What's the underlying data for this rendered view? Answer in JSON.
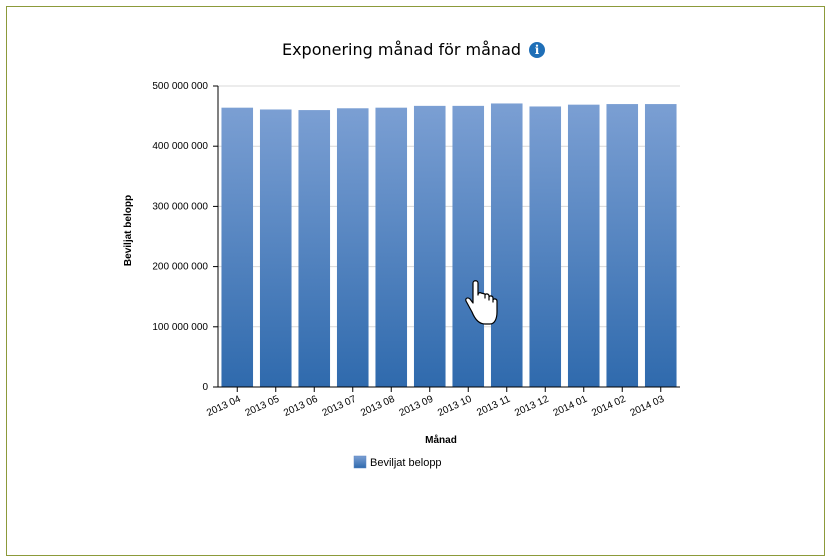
{
  "chart_data": {
    "type": "bar",
    "title": "Exponering månad för månad",
    "xlabel": "Månad",
    "ylabel": "Beviljat belopp",
    "categories": [
      "2013 04",
      "2013 05",
      "2013 06",
      "2013 07",
      "2013 08",
      "2013 09",
      "2013 10",
      "2013 11",
      "2013 12",
      "2014 01",
      "2014 02",
      "2014 03"
    ],
    "series": [
      {
        "name": "Beviljat belopp",
        "values": [
          464000000,
          461000000,
          460000000,
          463000000,
          464000000,
          467000000,
          467000000,
          471000000,
          466000000,
          469000000,
          470000000,
          470000000
        ]
      }
    ],
    "ylim": [
      0,
      500000000
    ],
    "yticks": [
      0,
      100000000,
      200000000,
      300000000,
      400000000,
      500000000
    ],
    "ytick_labels": [
      "0",
      "100 000 000",
      "200 000 000",
      "300 000 000",
      "400 000 000",
      "500 000 000"
    ],
    "grid": true,
    "legend_position": "bottom",
    "colors": {
      "bar_top": "#7b9fd3",
      "bar_bottom": "#2f6aad",
      "grid": "#d9d9d9",
      "axis": "#000000",
      "info_icon": "#1f6fb7",
      "panel_border": "#8c9a3a"
    }
  },
  "ui": {
    "info_icon": "info-icon",
    "info_glyph": "i",
    "cursor_icon": "hand-pointer-icon"
  }
}
